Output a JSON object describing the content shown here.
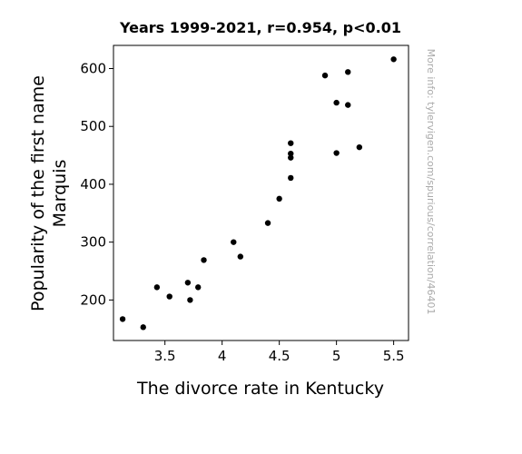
{
  "chart_data": {
    "type": "scatter",
    "title": "Years 1999-2021, r=0.954, p<0.01",
    "xlabel": "The divorce rate in Kentucky",
    "ylabel_lines": [
      "Popularity of the first name",
      "Marquis"
    ],
    "xlim": [
      3.05,
      5.63
    ],
    "ylim": [
      130,
      640
    ],
    "x_ticks": [
      3.5,
      4,
      4.5,
      5,
      5.5
    ],
    "x_tick_labels": [
      "3.5",
      "4",
      "4.5",
      "5",
      "5.5"
    ],
    "y_ticks": [
      200,
      300,
      400,
      500,
      600
    ],
    "y_tick_labels": [
      "200",
      "300",
      "400",
      "500",
      "600"
    ],
    "grid": false,
    "point_color": "#000000",
    "points": [
      {
        "x": 3.13,
        "y": 167
      },
      {
        "x": 3.31,
        "y": 153
      },
      {
        "x": 3.43,
        "y": 222
      },
      {
        "x": 3.54,
        "y": 206
      },
      {
        "x": 3.7,
        "y": 230
      },
      {
        "x": 3.72,
        "y": 200
      },
      {
        "x": 3.79,
        "y": 222
      },
      {
        "x": 3.84,
        "y": 269
      },
      {
        "x": 4.1,
        "y": 300
      },
      {
        "x": 4.16,
        "y": 275
      },
      {
        "x": 4.4,
        "y": 333
      },
      {
        "x": 4.5,
        "y": 375
      },
      {
        "x": 4.6,
        "y": 411
      },
      {
        "x": 4.6,
        "y": 446
      },
      {
        "x": 4.6,
        "y": 453
      },
      {
        "x": 4.6,
        "y": 471
      },
      {
        "x": 4.9,
        "y": 588
      },
      {
        "x": 5.0,
        "y": 541
      },
      {
        "x": 5.0,
        "y": 454
      },
      {
        "x": 5.1,
        "y": 594
      },
      {
        "x": 5.1,
        "y": 537
      },
      {
        "x": 5.2,
        "y": 464
      },
      {
        "x": 5.5,
        "y": 616
      }
    ]
  },
  "watermark": "More info: tylervigen.com/spurious/correlation/46401"
}
